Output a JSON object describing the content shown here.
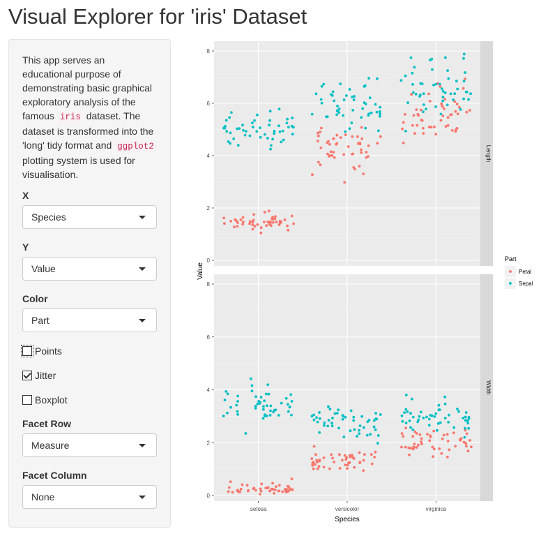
{
  "header": {
    "title": "Visual Explorer for 'iris' Dataset"
  },
  "sidebar": {
    "intro": {
      "part1": "This app serves an educational purpose of demonstrating basic graphical exploratory analysis of the famous ",
      "code1": "iris",
      "part2": " dataset. The dataset is transformed into the 'long' tidy format and ",
      "code2": "ggplot2",
      "part3": " plotting system is used for visualisation."
    },
    "x": {
      "label": "X",
      "value": "Species"
    },
    "y": {
      "label": "Y",
      "value": "Value"
    },
    "color": {
      "label": "Color",
      "value": "Part"
    },
    "points": {
      "label": "Points",
      "checked": false
    },
    "jitter": {
      "label": "Jitter",
      "checked": true
    },
    "boxplot": {
      "label": "Boxplot",
      "checked": false
    },
    "facet_row": {
      "label": "Facet Row",
      "value": "Measure"
    },
    "facet_column": {
      "label": "Facet Column",
      "value": "None"
    }
  },
  "chart_data": {
    "type": "scatter",
    "jitter": true,
    "xlabel": "Species",
    "ylabel": "Value",
    "categories": [
      "setosa",
      "versicolor",
      "virginica"
    ],
    "facet_rows": [
      "Length",
      "Width"
    ],
    "y_ticks": [
      0,
      2,
      4,
      6,
      8
    ],
    "ylim": [
      0,
      8
    ],
    "legend": {
      "title": "Part",
      "position": "right"
    },
    "colors": {
      "Petal": "#F8766D",
      "Sepal": "#00BFC4"
    },
    "series": [
      {
        "name": "Petal",
        "facets": {
          "Length": {
            "setosa": [
              1.4,
              1.4,
              1.3,
              1.5,
              1.4,
              1.7,
              1.4,
              1.5,
              1.4,
              1.5,
              1.5,
              1.6,
              1.4,
              1.1,
              1.2,
              1.5,
              1.3,
              1.4,
              1.7,
              1.5,
              1.7,
              1.5,
              1.0,
              1.7,
              1.9,
              1.6,
              1.6,
              1.5,
              1.4,
              1.6,
              1.6,
              1.5,
              1.5,
              1.4,
              1.5,
              1.2,
              1.3,
              1.4,
              1.3,
              1.5,
              1.3,
              1.3,
              1.3,
              1.6,
              1.9,
              1.4,
              1.6,
              1.4,
              1.5,
              1.4
            ],
            "versicolor": [
              4.7,
              4.5,
              4.9,
              4.0,
              4.6,
              4.5,
              4.7,
              3.3,
              4.6,
              3.9,
              3.5,
              4.2,
              4.0,
              4.7,
              3.6,
              4.4,
              4.5,
              4.1,
              4.5,
              3.9,
              4.8,
              4.0,
              4.9,
              4.7,
              4.3,
              4.4,
              4.8,
              5.0,
              4.5,
              3.5,
              3.8,
              3.7,
              3.9,
              5.1,
              4.5,
              4.5,
              4.7,
              4.4,
              4.1,
              4.0,
              4.4,
              4.6,
              4.0,
              3.3,
              4.2,
              4.2,
              4.2,
              4.3,
              3.0,
              4.1
            ],
            "virginica": [
              6.0,
              5.1,
              5.9,
              5.6,
              5.8,
              6.6,
              4.5,
              6.3,
              5.8,
              6.1,
              5.1,
              5.3,
              5.5,
              5.0,
              5.1,
              5.3,
              5.5,
              6.7,
              6.9,
              5.0,
              5.7,
              4.9,
              6.7,
              4.9,
              5.7,
              6.0,
              4.8,
              4.9,
              5.6,
              5.8,
              6.1,
              6.4,
              5.6,
              5.1,
              5.6,
              6.1,
              5.6,
              5.5,
              4.8,
              5.4,
              5.6,
              5.1,
              5.1,
              5.9,
              5.7,
              5.2,
              5.0,
              5.2,
              5.4,
              5.1
            ]
          },
          "Width": {
            "setosa": [
              0.2,
              0.2,
              0.2,
              0.2,
              0.2,
              0.4,
              0.3,
              0.2,
              0.2,
              0.1,
              0.2,
              0.2,
              0.1,
              0.1,
              0.2,
              0.4,
              0.4,
              0.3,
              0.3,
              0.3,
              0.2,
              0.4,
              0.2,
              0.5,
              0.2,
              0.2,
              0.4,
              0.2,
              0.2,
              0.2,
              0.2,
              0.4,
              0.1,
              0.2,
              0.2,
              0.2,
              0.2,
              0.1,
              0.2,
              0.2,
              0.3,
              0.3,
              0.2,
              0.6,
              0.4,
              0.3,
              0.2,
              0.2,
              0.2,
              0.2
            ],
            "versicolor": [
              1.4,
              1.5,
              1.5,
              1.3,
              1.5,
              1.3,
              1.6,
              1.0,
              1.3,
              1.4,
              1.0,
              1.5,
              1.0,
              1.4,
              1.3,
              1.4,
              1.5,
              1.0,
              1.5,
              1.1,
              1.8,
              1.3,
              1.5,
              1.2,
              1.3,
              1.4,
              1.4,
              1.7,
              1.5,
              1.0,
              1.1,
              1.0,
              1.2,
              1.6,
              1.5,
              1.6,
              1.5,
              1.3,
              1.3,
              1.3,
              1.2,
              1.4,
              1.2,
              1.0,
              1.3,
              1.2,
              1.3,
              1.3,
              1.1,
              1.3
            ],
            "virginica": [
              2.5,
              1.9,
              2.1,
              1.8,
              2.2,
              2.1,
              1.7,
              1.8,
              1.8,
              2.5,
              2.0,
              1.9,
              2.1,
              2.0,
              2.4,
              2.3,
              1.8,
              2.2,
              2.3,
              1.5,
              2.3,
              2.0,
              2.0,
              1.8,
              2.1,
              1.8,
              1.8,
              1.8,
              2.1,
              1.6,
              1.9,
              2.0,
              2.2,
              1.5,
              1.4,
              2.3,
              2.4,
              1.8,
              1.8,
              2.1,
              2.4,
              2.3,
              1.9,
              2.3,
              2.5,
              2.3,
              1.9,
              2.0,
              2.3,
              1.8
            ]
          }
        }
      },
      {
        "name": "Sepal",
        "facets": {
          "Length": {
            "setosa": [
              5.1,
              4.9,
              4.7,
              4.6,
              5.0,
              5.4,
              4.6,
              5.0,
              4.4,
              4.9,
              5.4,
              4.8,
              4.8,
              4.3,
              5.8,
              5.7,
              5.4,
              5.1,
              5.7,
              5.1,
              5.4,
              5.1,
              4.6,
              5.1,
              4.8,
              5.0,
              5.0,
              5.2,
              5.2,
              4.7,
              4.8,
              5.4,
              5.2,
              5.5,
              4.9,
              5.0,
              5.5,
              4.9,
              4.4,
              5.1,
              5.0,
              4.5,
              4.4,
              5.0,
              5.1,
              4.8,
              5.1,
              4.6,
              5.3,
              5.0
            ],
            "versicolor": [
              7.0,
              6.4,
              6.9,
              5.5,
              6.5,
              5.7,
              6.3,
              4.9,
              6.6,
              5.2,
              5.0,
              5.9,
              6.0,
              6.1,
              5.6,
              6.7,
              5.6,
              5.8,
              6.2,
              5.6,
              5.9,
              6.1,
              6.3,
              6.1,
              6.4,
              6.6,
              6.8,
              6.7,
              6.0,
              5.7,
              5.5,
              5.5,
              5.8,
              6.0,
              5.4,
              6.0,
              6.7,
              6.3,
              5.6,
              5.5,
              5.5,
              6.1,
              5.8,
              5.0,
              5.6,
              5.7,
              5.7,
              6.2,
              5.1,
              5.7
            ],
            "virginica": [
              6.3,
              5.8,
              7.1,
              6.3,
              6.5,
              7.6,
              4.9,
              7.3,
              6.7,
              7.2,
              6.5,
              6.4,
              6.8,
              5.7,
              5.8,
              6.4,
              6.5,
              7.7,
              7.7,
              6.0,
              6.9,
              5.6,
              7.7,
              6.3,
              6.7,
              7.2,
              6.2,
              6.1,
              6.4,
              7.2,
              7.4,
              7.9,
              6.4,
              6.3,
              6.1,
              7.7,
              6.3,
              6.4,
              6.0,
              6.9,
              6.7,
              6.9,
              5.8,
              6.8,
              6.7,
              6.7,
              6.3,
              6.5,
              6.2,
              5.9
            ]
          },
          "Width": {
            "setosa": [
              3.5,
              3.0,
              3.2,
              3.1,
              3.6,
              3.9,
              3.4,
              3.4,
              2.9,
              3.1,
              3.7,
              3.4,
              3.0,
              3.0,
              4.0,
              4.4,
              3.9,
              3.5,
              3.8,
              3.8,
              3.4,
              3.7,
              3.6,
              3.3,
              3.4,
              3.0,
              3.4,
              3.5,
              3.4,
              3.2,
              3.1,
              3.4,
              4.1,
              4.2,
              3.1,
              3.2,
              3.5,
              3.6,
              3.0,
              3.4,
              3.5,
              2.3,
              3.2,
              3.5,
              3.8,
              3.0,
              3.8,
              3.2,
              3.7,
              3.3
            ],
            "versicolor": [
              3.2,
              3.2,
              3.1,
              2.3,
              2.8,
              2.8,
              3.3,
              2.4,
              2.9,
              2.7,
              2.0,
              3.0,
              2.2,
              2.9,
              2.9,
              3.1,
              3.0,
              2.7,
              2.2,
              2.5,
              3.2,
              2.8,
              2.5,
              2.8,
              2.9,
              3.0,
              2.8,
              3.0,
              2.9,
              2.6,
              2.4,
              2.4,
              2.7,
              2.7,
              3.0,
              3.4,
              3.1,
              2.3,
              3.0,
              2.5,
              2.6,
              3.0,
              2.6,
              2.3,
              2.7,
              3.0,
              2.9,
              2.9,
              2.5,
              2.8
            ],
            "virginica": [
              3.3,
              2.7,
              3.0,
              2.9,
              3.0,
              3.0,
              2.5,
              2.9,
              2.5,
              3.6,
              3.2,
              2.7,
              3.0,
              2.5,
              2.8,
              3.2,
              3.0,
              3.8,
              2.6,
              2.2,
              3.2,
              2.8,
              2.8,
              2.7,
              3.3,
              3.2,
              2.8,
              3.0,
              2.8,
              3.0,
              2.8,
              3.8,
              2.8,
              2.8,
              2.6,
              3.0,
              3.4,
              3.1,
              3.0,
              3.1,
              3.1,
              3.1,
              2.7,
              3.2,
              3.3,
              3.0,
              2.5,
              3.0,
              3.4,
              3.0
            ]
          }
        }
      }
    ]
  }
}
